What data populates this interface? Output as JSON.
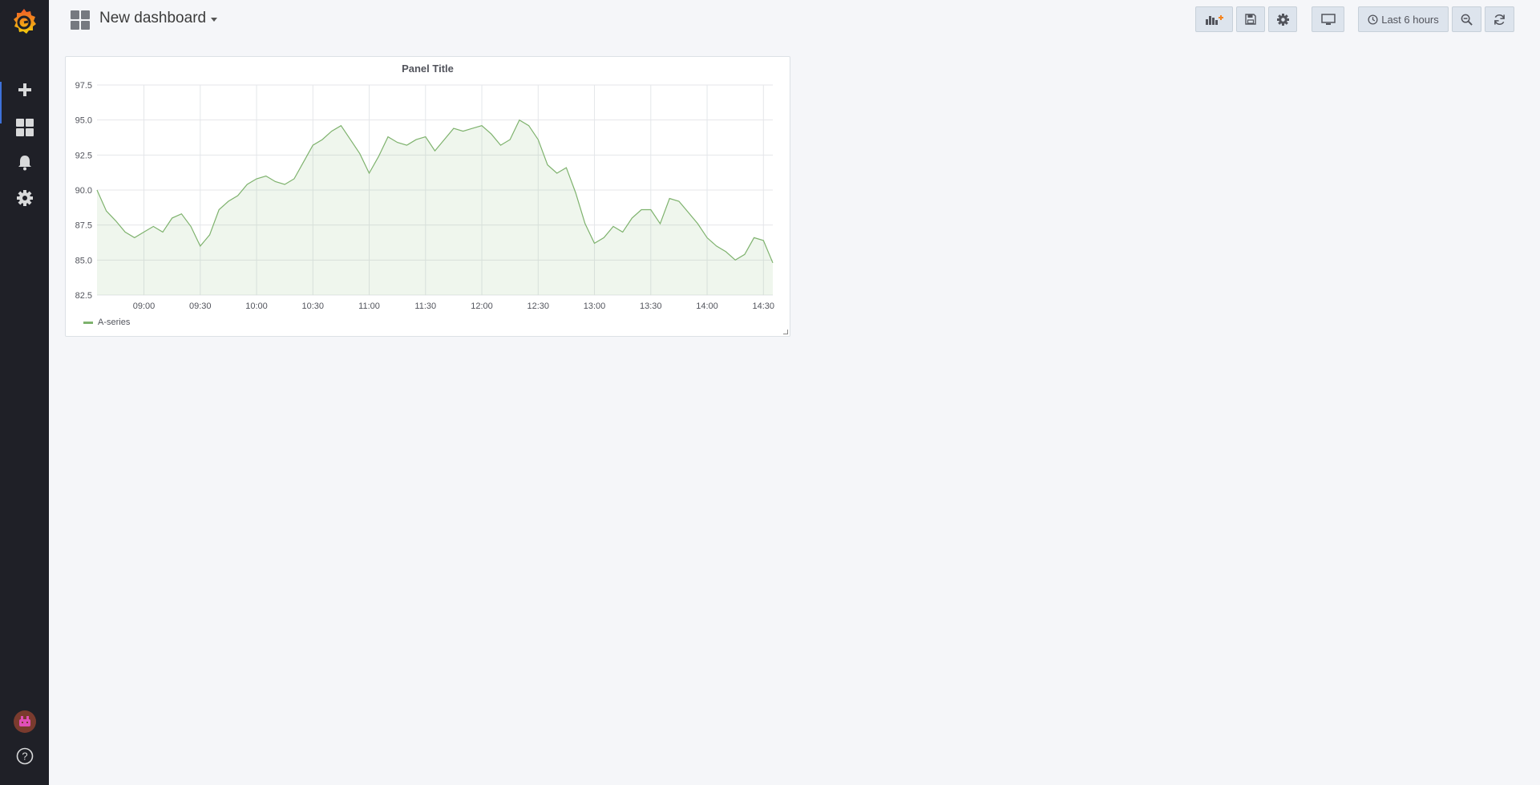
{
  "app": {
    "sidebar": {
      "items": [
        {
          "name": "create",
          "icon": "plus-icon"
        },
        {
          "name": "dashboards",
          "icon": "apps-icon"
        },
        {
          "name": "alerting",
          "icon": "bell-icon"
        },
        {
          "name": "configuration",
          "icon": "gear-icon"
        }
      ],
      "bottom": [
        {
          "name": "profile",
          "icon": "avatar-icon"
        },
        {
          "name": "help",
          "icon": "question-icon"
        }
      ]
    },
    "navbar": {
      "title": "New dashboard",
      "time_picker_label": "Last 6 hours",
      "buttons": [
        "add-panel-icon",
        "save-icon",
        "gear-icon",
        "monitor-icon",
        "clock-icon",
        "zoom-out-icon",
        "refresh-icon"
      ]
    },
    "colors": {
      "sidebar_bg": "#1f2027",
      "series": "#7eb26d",
      "accent_orange": "#f5841f"
    }
  },
  "panel": {
    "title": "Panel Title",
    "legend": [
      "A-series"
    ]
  },
  "chart_data": {
    "type": "area",
    "title": "Panel Title",
    "xlabel": "",
    "ylabel": "",
    "x_ticks": [
      "09:00",
      "09:30",
      "10:00",
      "10:30",
      "11:00",
      "11:30",
      "12:00",
      "12:30",
      "13:00",
      "13:30",
      "14:00",
      "14:30"
    ],
    "y_ticks": [
      82.5,
      85.0,
      87.5,
      90.0,
      92.5,
      95.0,
      97.5
    ],
    "ylim": [
      82.5,
      97.5
    ],
    "grid": true,
    "legend_position": "bottom-left",
    "series": [
      {
        "name": "A-series",
        "color": "#7eb26d",
        "x": [
          "08:35",
          "08:40",
          "08:45",
          "08:50",
          "08:55",
          "09:00",
          "09:05",
          "09:10",
          "09:15",
          "09:20",
          "09:25",
          "09:30",
          "09:35",
          "09:40",
          "09:45",
          "09:50",
          "09:55",
          "10:00",
          "10:05",
          "10:10",
          "10:15",
          "10:20",
          "10:25",
          "10:30",
          "10:35",
          "10:40",
          "10:45",
          "10:50",
          "10:55",
          "11:00",
          "11:05",
          "11:10",
          "11:15",
          "11:20",
          "11:25",
          "11:30",
          "11:35",
          "11:40",
          "11:45",
          "11:50",
          "11:55",
          "12:00",
          "12:05",
          "12:10",
          "12:15",
          "12:20",
          "12:25",
          "12:30",
          "12:35",
          "12:40",
          "12:45",
          "12:50",
          "12:55",
          "13:00",
          "13:05",
          "13:10",
          "13:15",
          "13:20",
          "13:25",
          "13:30",
          "13:35",
          "13:40",
          "13:45",
          "13:50",
          "13:55",
          "14:00",
          "14:05",
          "14:10",
          "14:15",
          "14:20",
          "14:25",
          "14:30",
          "14:35"
        ],
        "values": [
          90.0,
          88.5,
          87.8,
          87.0,
          86.6,
          87.0,
          87.4,
          87.0,
          88.0,
          88.3,
          87.4,
          86.0,
          86.8,
          88.6,
          89.2,
          89.6,
          90.4,
          90.8,
          91.0,
          90.6,
          90.4,
          90.8,
          92.0,
          93.2,
          93.6,
          94.2,
          94.6,
          93.6,
          92.6,
          91.2,
          92.4,
          93.8,
          93.4,
          93.2,
          93.6,
          93.8,
          92.8,
          93.6,
          94.4,
          94.2,
          94.4,
          94.6,
          94.0,
          93.2,
          93.6,
          95.0,
          94.6,
          93.6,
          91.8,
          91.2,
          91.6,
          89.8,
          87.6,
          86.2,
          86.6,
          87.4,
          87.0,
          88.0,
          88.6,
          88.6,
          87.6,
          89.4,
          89.2,
          88.4,
          87.6,
          86.6,
          86.0,
          85.6,
          85.0,
          85.4,
          86.6,
          86.4,
          84.8
        ]
      }
    ]
  }
}
